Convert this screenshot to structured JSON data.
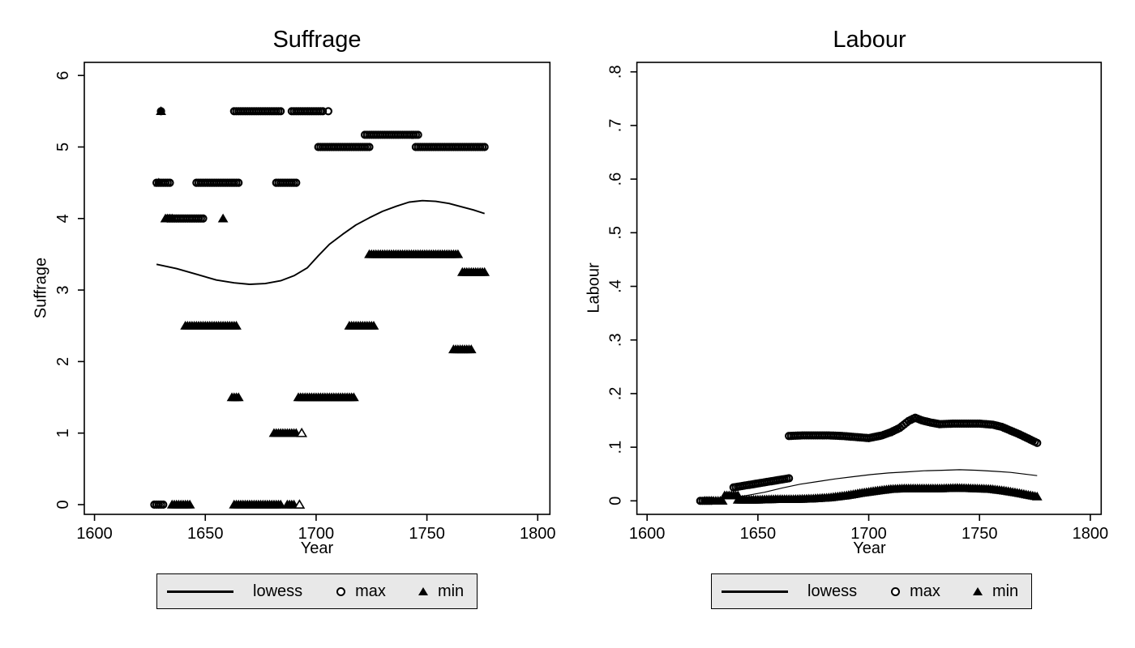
{
  "figure": {
    "background": "#ffffff",
    "legend_background": "#e8e8e8",
    "ink_color": "#000000"
  },
  "chart_data": [
    {
      "type": "scatter",
      "title": "Suffrage",
      "xlabel": "Year",
      "ylabel": "Suffrage",
      "xlim": [
        1595.4,
        1805.5
      ],
      "ylim": [
        -0.136,
        6.183
      ],
      "xticks": [
        1600,
        1650,
        1700,
        1750,
        1800
      ],
      "xtick_labels": [
        "1600",
        "1650",
        "1700",
        "1750",
        "1800"
      ],
      "yticks": [
        0,
        1,
        2,
        3,
        4,
        5,
        6
      ],
      "ytick_labels": [
        "0",
        "1",
        "2",
        "3",
        "4",
        "5",
        "6"
      ],
      "grid": false,
      "legend": {
        "position": "bottom",
        "entries": [
          {
            "label": "lowess",
            "glyph": "line"
          },
          {
            "label": "max",
            "glyph": "circle"
          },
          {
            "label": "min",
            "glyph": "triangle"
          }
        ]
      },
      "series": [
        {
          "name": "lowess",
          "kind": "line",
          "points": [
            [
              1628,
              3.36
            ],
            [
              1637,
              3.3
            ],
            [
              1646,
              3.22
            ],
            [
              1655,
              3.14
            ],
            [
              1663,
              3.1
            ],
            [
              1670,
              3.08
            ],
            [
              1677,
              3.09
            ],
            [
              1684,
              3.13
            ],
            [
              1690,
              3.2
            ],
            [
              1696,
              3.31
            ],
            [
              1701,
              3.48
            ],
            [
              1706,
              3.64
            ],
            [
              1712,
              3.78
            ],
            [
              1718,
              3.91
            ],
            [
              1724,
              4.01
            ],
            [
              1730,
              4.1
            ],
            [
              1736,
              4.17
            ],
            [
              1742,
              4.23
            ],
            [
              1748,
              4.25
            ],
            [
              1754,
              4.24
            ],
            [
              1760,
              4.21
            ],
            [
              1766,
              4.16
            ],
            [
              1771,
              4.12
            ],
            [
              1776,
              4.07
            ]
          ]
        },
        {
          "name": "max",
          "kind": "marker",
          "marker": "circle",
          "bands": [
            {
              "points": [
                [
                  1630,
                  5.5
                ]
              ]
            },
            {
              "points": [
                [
                  1663,
                  5.5
                ],
                [
                  1684,
                  5.5
                ]
              ]
            },
            {
              "points": [
                [
                  1689,
                  5.5
                ],
                [
                  1703,
                  5.5
                ]
              ]
            },
            {
              "points": [
                [
                  1705.5,
                  5.5
                ]
              ]
            },
            {
              "points": [
                [
                  1722,
                  5.17
                ],
                [
                  1746,
                  5.17
                ]
              ]
            },
            {
              "points": [
                [
                  1701,
                  5.0
                ],
                [
                  1724,
                  5.0
                ]
              ]
            },
            {
              "points": [
                [
                  1745,
                  5.0
                ],
                [
                  1776,
                  5.0
                ]
              ]
            },
            {
              "points": [
                [
                  1628,
                  4.5
                ],
                [
                  1634,
                  4.5
                ]
              ]
            },
            {
              "points": [
                [
                  1646,
                  4.5
                ],
                [
                  1665,
                  4.5
                ]
              ]
            },
            {
              "points": [
                [
                  1682,
                  4.5
                ],
                [
                  1691,
                  4.5
                ]
              ]
            },
            {
              "points": [
                [
                  1633,
                  4.0
                ],
                [
                  1649,
                  4.0
                ]
              ]
            },
            {
              "points": [
                [
                  1627,
                  0.0
                ],
                [
                  1631,
                  0.0
                ]
              ]
            }
          ]
        },
        {
          "name": "min",
          "kind": "marker",
          "marker": "triangle",
          "bands": [
            {
              "points": [
                [
                  1630,
                  5.5
                ]
              ]
            },
            {
              "points": [
                [
                  1629,
                  4.5
                ]
              ]
            },
            {
              "points": [
                [
                  1632,
                  4.0
                ],
                [
                  1635,
                  4.0
                ]
              ]
            },
            {
              "points": [
                [
                  1658,
                  4.0
                ]
              ]
            },
            {
              "points": [
                [
                  1724,
                  3.5
                ],
                [
                  1764,
                  3.5
                ]
              ]
            },
            {
              "points": [
                [
                  1766,
                  3.25
                ],
                [
                  1776,
                  3.25
                ]
              ]
            },
            {
              "points": [
                [
                  1641,
                  2.5
                ],
                [
                  1664,
                  2.5
                ]
              ]
            },
            {
              "points": [
                [
                  1715,
                  2.5
                ],
                [
                  1726,
                  2.5
                ]
              ]
            },
            {
              "points": [
                [
                  1762,
                  2.17
                ],
                [
                  1770,
                  2.17
                ]
              ]
            },
            {
              "points": [
                [
                  1662,
                  1.5
                ],
                [
                  1665,
                  1.5
                ]
              ]
            },
            {
              "points": [
                [
                  1692,
                  1.5
                ],
                [
                  1717,
                  1.5
                ]
              ]
            },
            {
              "points": [
                [
                  1681,
                  1.0
                ],
                [
                  1691,
                  1.0
                ]
              ]
            },
            {
              "points": [
                [
                  1693.5,
                  1.0
                ]
              ],
              "hollow": true
            },
            {
              "points": [
                [
                  1635,
                  0.0
                ],
                [
                  1643,
                  0.0
                ]
              ]
            },
            {
              "points": [
                [
                  1663,
                  0.0
                ],
                [
                  1684,
                  0.0
                ]
              ]
            },
            {
              "points": [
                [
                  1687,
                  0.0
                ],
                [
                  1690,
                  0.0
                ]
              ]
            },
            {
              "points": [
                [
                  1692.5,
                  0.0
                ]
              ],
              "hollow": true
            }
          ]
        }
      ]
    },
    {
      "type": "scatter",
      "title": "Labour",
      "xlabel": "Year",
      "ylabel": "Labour",
      "xlim": [
        1595.4,
        1804.9
      ],
      "ylim": [
        -0.0252,
        0.8177
      ],
      "xticks": [
        1600,
        1650,
        1700,
        1750,
        1800
      ],
      "xtick_labels": [
        "1600",
        "1650",
        "1700",
        "1750",
        "1800"
      ],
      "yticks": [
        0,
        0.1,
        0.2,
        0.3,
        0.4,
        0.5,
        0.6,
        0.7,
        0.8
      ],
      "ytick_labels": [
        "0",
        ".1",
        ".2",
        ".3",
        ".4",
        ".5",
        ".6",
        ".7",
        ".8"
      ],
      "grid": false,
      "legend": {
        "position": "bottom",
        "entries": [
          {
            "label": "lowess",
            "glyph": "line"
          },
          {
            "label": "max",
            "glyph": "circle"
          },
          {
            "label": "min",
            "glyph": "triangle"
          }
        ]
      },
      "series": [
        {
          "name": "lowess",
          "kind": "line",
          "points": [
            [
              1637,
              0.005
            ],
            [
              1645,
              0.01
            ],
            [
              1653,
              0.016
            ],
            [
              1661,
              0.024
            ],
            [
              1669,
              0.031
            ],
            [
              1677,
              0.036
            ],
            [
              1685,
              0.041
            ],
            [
              1693,
              0.045
            ],
            [
              1701,
              0.049
            ],
            [
              1709,
              0.052
            ],
            [
              1717,
              0.054
            ],
            [
              1725,
              0.056
            ],
            [
              1733,
              0.057
            ],
            [
              1741,
              0.058
            ],
            [
              1749,
              0.057
            ],
            [
              1757,
              0.055
            ],
            [
              1764,
              0.053
            ],
            [
              1770,
              0.05
            ],
            [
              1776,
              0.047
            ]
          ]
        },
        {
          "name": "max",
          "kind": "marker",
          "marker": "circle",
          "bands": [
            {
              "points": [
                [
                  1624,
                  0.0
                ],
                [
                  1629,
                  0.0
                ]
              ]
            },
            {
              "points": [
                [
                  1639,
                  0.025
                ],
                [
                  1664,
                  0.042
                ]
              ]
            },
            {
              "points": [
                [
                  1664,
                  0.121
                ],
                [
                  1670,
                  0.122
                ],
                [
                  1676,
                  0.122
                ],
                [
                  1682,
                  0.122
                ],
                [
                  1688,
                  0.121
                ],
                [
                  1694,
                  0.119
                ],
                [
                  1700,
                  0.117
                ],
                [
                  1706,
                  0.122
                ],
                [
                  1710,
                  0.128
                ],
                [
                  1714,
                  0.136
                ],
                [
                  1718,
                  0.149
                ],
                [
                  1721,
                  0.155
                ],
                [
                  1724,
                  0.15
                ],
                [
                  1728,
                  0.146
                ],
                [
                  1732,
                  0.143
                ],
                [
                  1738,
                  0.144
                ],
                [
                  1744,
                  0.144
                ],
                [
                  1750,
                  0.144
                ],
                [
                  1756,
                  0.142
                ],
                [
                  1760,
                  0.138
                ],
                [
                  1764,
                  0.131
                ],
                [
                  1768,
                  0.124
                ],
                [
                  1772,
                  0.116
                ],
                [
                  1776,
                  0.108
                ]
              ]
            }
          ]
        },
        {
          "name": "min",
          "kind": "marker",
          "marker": "triangle",
          "bands": [
            {
              "points": [
                [
                  1626,
                  0.0
                ],
                [
                  1634,
                  0.0
                ]
              ]
            },
            {
              "points": [
                [
                  1635,
                  0.01
                ],
                [
                  1641,
                  0.01
                ]
              ]
            },
            {
              "points": [
                [
                  1641,
                  0.002
                ],
                [
                  1650,
                  0.002
                ],
                [
                  1658,
                  0.003
                ],
                [
                  1666,
                  0.003
                ],
                [
                  1674,
                  0.004
                ],
                [
                  1682,
                  0.006
                ],
                [
                  1690,
                  0.01
                ],
                [
                  1697,
                  0.015
                ],
                [
                  1704,
                  0.019
                ],
                [
                  1710,
                  0.022
                ],
                [
                  1716,
                  0.023
                ],
                [
                  1724,
                  0.023
                ],
                [
                  1732,
                  0.023
                ],
                [
                  1740,
                  0.024
                ],
                [
                  1748,
                  0.023
                ],
                [
                  1755,
                  0.022
                ],
                [
                  1761,
                  0.019
                ],
                [
                  1767,
                  0.015
                ],
                [
                  1772,
                  0.011
                ],
                [
                  1776,
                  0.008
                ]
              ]
            }
          ]
        }
      ]
    }
  ]
}
